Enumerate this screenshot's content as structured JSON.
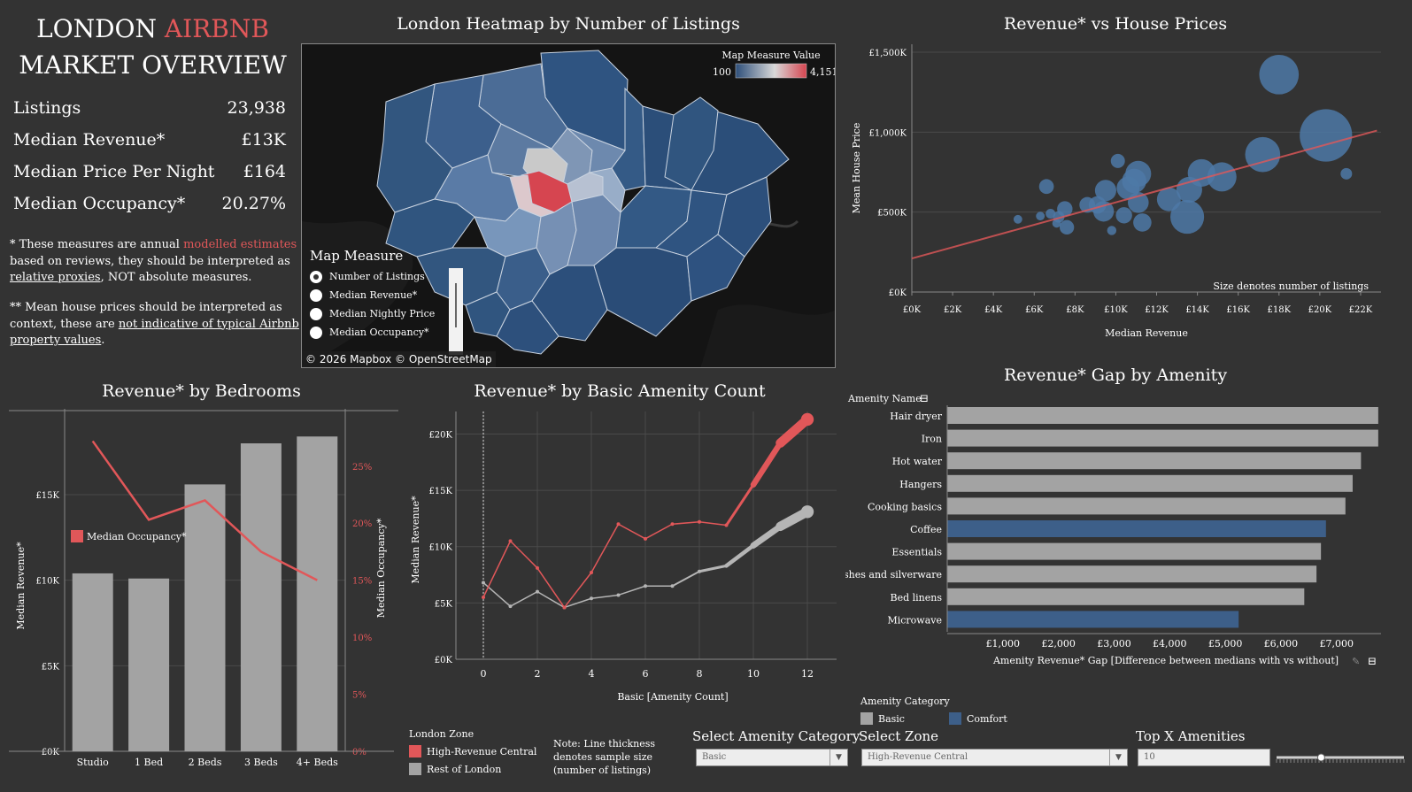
{
  "overview": {
    "title_part1": "LONDON",
    "title_part2": "AIRBNB",
    "title_line2": "MARKET OVERVIEW",
    "kpis": [
      {
        "label": "Listings",
        "value": "23,938"
      },
      {
        "label": "Median Revenue*",
        "value": "£13K"
      },
      {
        "label": "Median Price Per Night",
        "value": "£164"
      },
      {
        "label": "Median Occupancy*",
        "value": "20.27%"
      }
    ],
    "note1_a": "* These measures are annual",
    "note1_link": "modelled estimates",
    "note1_b": "based on reviews, they should be interpreted as",
    "note1_c_link": "relative proxies",
    "note1_c_rest": ", NOT absolute measures.",
    "note2_a": "** Mean house prices should be interpreted as",
    "note2_b": "context, these are",
    "note2_b_link": "not indicative of typical Airbnb",
    "note2_c_link": "property values",
    "note2_c_rest": "."
  },
  "map": {
    "title": "London Heatmap by Number of Listings",
    "legend_title": "Map Measure Value",
    "legend_min": "100",
    "legend_max": "4,151",
    "measure_title": "Map Measure",
    "measure_options": [
      "Number of Listings",
      "Median Revenue*",
      "Median Nightly Price",
      "Median Occupancy*"
    ],
    "selected_option": "Number of Listings",
    "attribution": "© 2026 Mapbox © OpenStreetMap",
    "colors": {
      "low": "#2e4f7a",
      "mid": "#d9d9d9",
      "high": "#d64550"
    }
  },
  "scatter": {
    "title": "Revenue* vs House Prices",
    "note": "Size denotes number of listings"
  },
  "bedrooms": {
    "title": "Revenue* by Bedrooms",
    "legend": "Median Occupancy*"
  },
  "amenity_line": {
    "title": "Revenue* by Basic Amenity Count",
    "zone_legend_title": "London Zone",
    "zones": [
      "High-Revenue Central",
      "Rest of London"
    ],
    "note": [
      "Note: Line thickness",
      "denotes sample size",
      "(number of listings)"
    ]
  },
  "gap": {
    "title": "Revenue* Gap by Amenity",
    "header": "Amenity Name",
    "category_title": "Amenity Category",
    "categories": [
      "Basic",
      "Comfort"
    ]
  },
  "controls": {
    "amenity_category_label": "Select Amenity Category",
    "amenity_category_value": "Basic",
    "zone_label": "Select Zone",
    "zone_value": "High-Revenue Central",
    "topx_label": "Top X Amenities",
    "topx_value": "10",
    "topx_slider": 0.35
  },
  "colors": {
    "accent_red": "#e15759",
    "blue": "#4e79a7",
    "grey_bar": "#a3a3a3",
    "navy_bar": "#3d5f89"
  },
  "chart_data": [
    {
      "id": "scatter",
      "type": "scatter",
      "title": "Revenue* vs House Prices",
      "xlabel": "Median Revenue",
      "ylabel": "Mean House Price",
      "xlim": [
        0,
        23000
      ],
      "ylim": [
        0,
        1550000
      ],
      "x_ticks": [
        "£0K",
        "£2K",
        "£4K",
        "£6K",
        "£8K",
        "£10K",
        "£12K",
        "£14K",
        "£16K",
        "£18K",
        "£20K",
        "£22K"
      ],
      "y_ticks": [
        "£0K",
        "£500K",
        "£1,000K",
        "£1,500K"
      ],
      "points": [
        {
          "x": 5200,
          "y": 455000,
          "size": 80
        },
        {
          "x": 6300,
          "y": 475000,
          "size": 80
        },
        {
          "x": 6800,
          "y": 490000,
          "size": 100
        },
        {
          "x": 7100,
          "y": 430000,
          "size": 80
        },
        {
          "x": 7200,
          "y": 470000,
          "size": 140
        },
        {
          "x": 7600,
          "y": 405000,
          "size": 220
        },
        {
          "x": 7500,
          "y": 520000,
          "size": 250
        },
        {
          "x": 6600,
          "y": 660000,
          "size": 230
        },
        {
          "x": 8600,
          "y": 545000,
          "size": 260
        },
        {
          "x": 9100,
          "y": 545000,
          "size": 320
        },
        {
          "x": 9400,
          "y": 505000,
          "size": 450
        },
        {
          "x": 9500,
          "y": 635000,
          "size": 480
        },
        {
          "x": 9800,
          "y": 385000,
          "size": 90
        },
        {
          "x": 10100,
          "y": 820000,
          "size": 210
        },
        {
          "x": 10400,
          "y": 480000,
          "size": 280
        },
        {
          "x": 10600,
          "y": 650000,
          "size": 550
        },
        {
          "x": 10900,
          "y": 695000,
          "size": 620
        },
        {
          "x": 11100,
          "y": 740000,
          "size": 700
        },
        {
          "x": 11100,
          "y": 560000,
          "size": 460
        },
        {
          "x": 11300,
          "y": 435000,
          "size": 350
        },
        {
          "x": 12600,
          "y": 580000,
          "size": 600
        },
        {
          "x": 13600,
          "y": 640000,
          "size": 700
        },
        {
          "x": 13500,
          "y": 470000,
          "size": 1200
        },
        {
          "x": 14200,
          "y": 745000,
          "size": 800
        },
        {
          "x": 15200,
          "y": 720000,
          "size": 900
        },
        {
          "x": 17200,
          "y": 860000,
          "size": 1300
        },
        {
          "x": 18000,
          "y": 1360000,
          "size": 1650
        },
        {
          "x": 20300,
          "y": 980000,
          "size": 2900
        },
        {
          "x": 21300,
          "y": 740000,
          "size": 140
        }
      ],
      "trendline": {
        "x": [
          0,
          22800
        ],
        "y": [
          210000,
          1010000
        ]
      },
      "note": "Size denotes number of listings"
    },
    {
      "id": "bedrooms",
      "type": "bar",
      "title": "Revenue* by Bedrooms",
      "categories": [
        "Studio",
        "1 Bed",
        "2 Beds",
        "3 Beds",
        "4+ Beds"
      ],
      "series": [
        {
          "name": "Median Revenue*",
          "values": [
            10400,
            10100,
            15600,
            18000,
            18400
          ]
        },
        {
          "name": "Median Occupancy*",
          "values": [
            27.2,
            20.3,
            22.0,
            17.5,
            15.0
          ]
        }
      ],
      "ylabel": "Median Revenue*",
      "ylabel2": "Median Occupancy*",
      "ylim": [
        0,
        19500
      ],
      "ylim2": [
        0,
        0.2925
      ],
      "y_ticks": [
        "£0K",
        "£5K",
        "£10K",
        "£15K"
      ],
      "y2_ticks": [
        "0%",
        "5%",
        "10%",
        "15%",
        "20%",
        "25%"
      ]
    },
    {
      "id": "amenity_line",
      "type": "line",
      "title": "Revenue* by Basic Amenity Count",
      "xlabel": "Basic [Amenity Count]",
      "ylabel": "Median Revenue*",
      "x": [
        0,
        1,
        2,
        3,
        4,
        5,
        6,
        7,
        8,
        9,
        10,
        11,
        12
      ],
      "x_ticks": [
        "0",
        "2",
        "4",
        "6",
        "8",
        "10",
        "12"
      ],
      "y_ticks": [
        "£0K",
        "£5K",
        "£10K",
        "£15K",
        "£20K"
      ],
      "xlim": [
        0,
        13
      ],
      "ylim": [
        0,
        22000
      ],
      "series": [
        {
          "name": "High-Revenue Central",
          "values": [
            5500,
            10500,
            8100,
            4600,
            7700,
            12000,
            10700,
            12000,
            12200,
            11900,
            15500,
            19200,
            21300
          ],
          "widths": [
            1,
            1,
            1,
            1,
            1,
            1,
            1,
            1,
            1,
            1,
            4,
            8,
            12
          ]
        },
        {
          "name": "Rest of London",
          "values": [
            6800,
            4700,
            6000,
            4600,
            5400,
            5700,
            6500,
            6500,
            7800,
            8300,
            10100,
            11800,
            13100
          ],
          "widths": [
            1,
            1,
            1,
            1,
            1,
            1,
            1,
            1,
            2,
            3,
            5,
            8,
            12
          ]
        }
      ]
    },
    {
      "id": "gap",
      "type": "bar",
      "title": "Revenue* Gap by Amenity",
      "orientation": "horizontal",
      "xlabel": "Amenity Revenue* Gap  [Difference between medians with vs without]",
      "xlim": [
        0,
        7800
      ],
      "x_ticks": [
        "£1,000",
        "£2,000",
        "£3,000",
        "£4,000",
        "£5,000",
        "£6,000",
        "£7,000"
      ],
      "categories": [
        "Hair dryer",
        "Iron",
        "Hot water",
        "Hangers",
        "Cooking basics",
        "Coffee",
        "Essentials",
        "Dishes and silverware",
        "Bed linens",
        "Microwave"
      ],
      "values": [
        7750,
        7750,
        7440,
        7290,
        7160,
        6810,
        6720,
        6640,
        6420,
        5240
      ],
      "category": [
        "Basic",
        "Basic",
        "Basic",
        "Basic",
        "Basic",
        "Comfort",
        "Basic",
        "Basic",
        "Basic",
        "Comfort"
      ]
    }
  ]
}
